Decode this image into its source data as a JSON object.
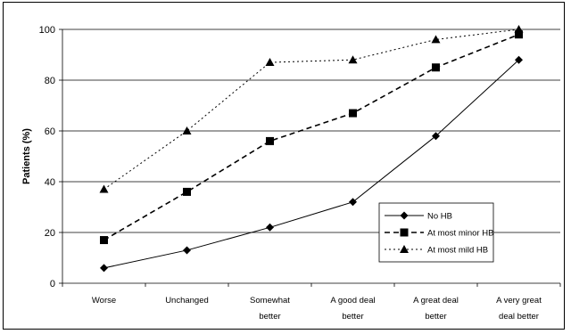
{
  "chart_data": {
    "type": "line",
    "ylabel": "Patients (%)",
    "ylim": [
      0,
      100
    ],
    "yticks": [
      "0",
      "20",
      "40",
      "60",
      "80",
      "100"
    ],
    "grid": "horizontal",
    "legend_position": "lower-right",
    "categories": [
      [
        "Worse"
      ],
      [
        "Unchanged"
      ],
      [
        "Somewhat",
        "better"
      ],
      [
        "A good deal",
        "better"
      ],
      [
        "A great deal",
        "better"
      ],
      [
        "A very great",
        "deal better"
      ]
    ],
    "series": [
      {
        "name": "No HB",
        "marker": "diamond",
        "line": "solid",
        "values": [
          6,
          13,
          22,
          32,
          58,
          88
        ]
      },
      {
        "name": "At most minor HB",
        "marker": "square",
        "line": "dashed",
        "values": [
          17,
          36,
          56,
          67,
          85,
          98
        ]
      },
      {
        "name": "At most mild HB",
        "marker": "triangle",
        "line": "dotted",
        "values": [
          37,
          60,
          87,
          88,
          96,
          100
        ]
      }
    ]
  }
}
